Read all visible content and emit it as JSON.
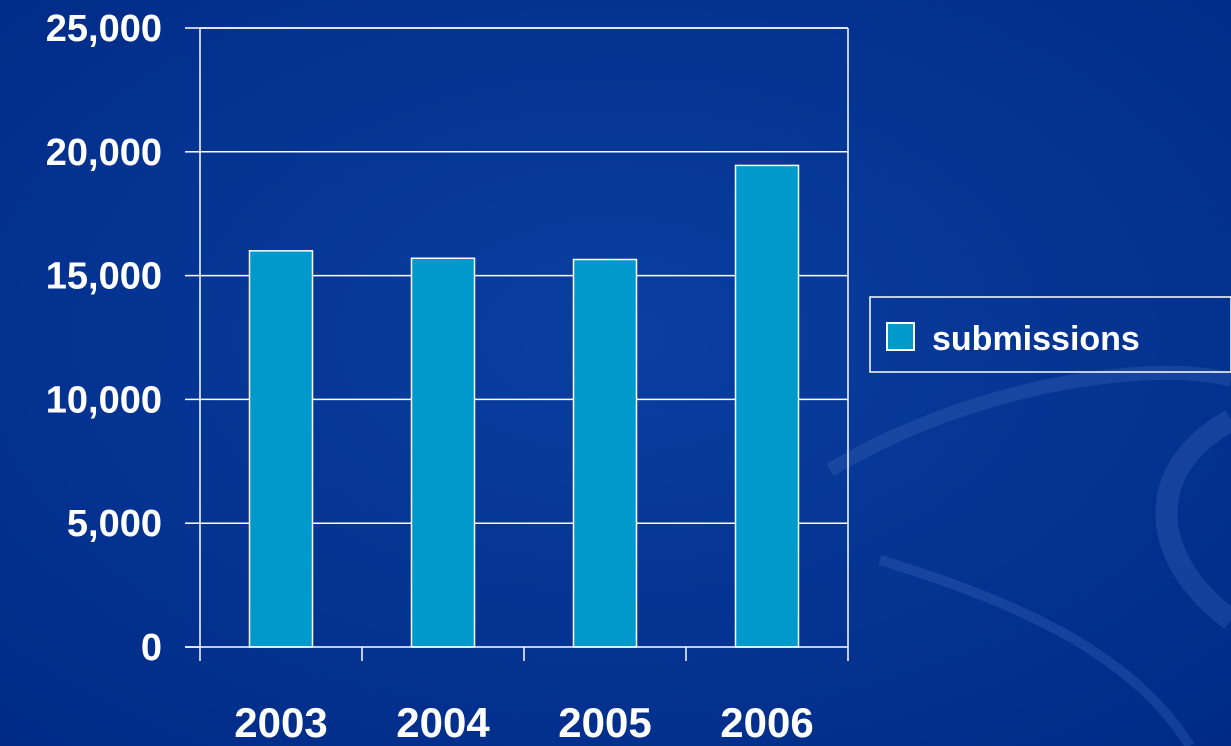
{
  "chart_data": {
    "type": "bar",
    "categories": [
      "2003",
      "2004",
      "2005",
      "2006"
    ],
    "series": [
      {
        "name": "submissions",
        "values": [
          16000,
          15700,
          15650,
          19450
        ]
      }
    ],
    "ylim": [
      0,
      25000
    ],
    "yticks": [
      0,
      5000,
      10000,
      15000,
      20000,
      25000
    ],
    "ytick_labels": [
      "0",
      "5,000",
      "10,000",
      "15,000",
      "20,000",
      "25,000"
    ],
    "grid": true,
    "legend_position": "right",
    "colors": {
      "background": "#002e8f",
      "bar_fill": "#0099cc",
      "bar_stroke": "#ffffff",
      "axis": "#ffffff",
      "text": "#ffffff"
    }
  }
}
